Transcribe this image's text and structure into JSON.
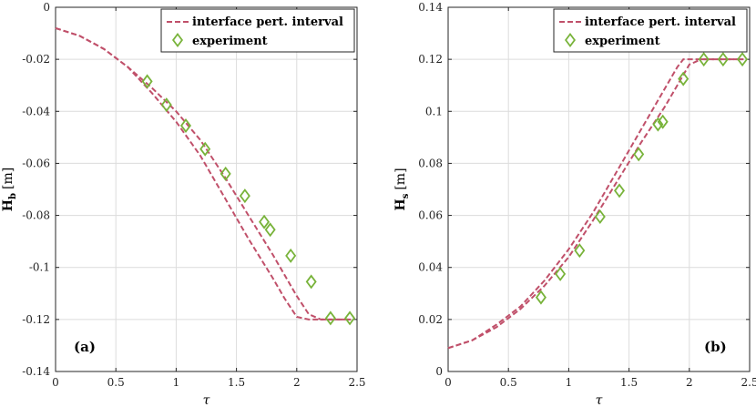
{
  "colors": {
    "interval": "#c0506a",
    "experiment": "#78b33a",
    "grid": "#dcdcdc",
    "axis": "#262626"
  },
  "legend_labels": {
    "interval": "interface pert. interval",
    "experiment": "experiment"
  },
  "chart_data": [
    {
      "type": "line",
      "panel_label": "(a)",
      "xlabel": "τ",
      "ylabel_main": "H",
      "ylabel_sub": "b",
      "ylabel_unit": "[m]",
      "xlim": [
        0,
        2.5
      ],
      "ylim": [
        -0.14,
        0
      ],
      "xticks": [
        0,
        0.5,
        1,
        1.5,
        2,
        2.5
      ],
      "xtick_labels": [
        "0",
        "0.5",
        "1",
        "1.5",
        "2",
        "2.5"
      ],
      "yticks": [
        -0.14,
        -0.12,
        -0.1,
        -0.08,
        -0.06,
        -0.04,
        -0.02,
        0
      ],
      "ytick_labels": [
        "-0.14",
        "-0.12",
        "-0.1",
        "-0.08",
        "-0.06",
        "-0.04",
        "-0.02",
        "0"
      ],
      "grid": true,
      "legend_position": "top-right",
      "series": [
        {
          "name": "interface pert. interval",
          "style": "dashed",
          "x": [
            0,
            0.2,
            0.4,
            0.6,
            0.8,
            1.0,
            1.2,
            1.4,
            1.6,
            1.8,
            1.9,
            2.0,
            2.1,
            2.2,
            2.3,
            2.4,
            2.45
          ],
          "y": [
            -0.008,
            -0.011,
            -0.016,
            -0.023,
            -0.031,
            -0.04,
            -0.051,
            -0.065,
            -0.08,
            -0.095,
            -0.103,
            -0.111,
            -0.118,
            -0.12,
            -0.12,
            -0.12,
            -0.12
          ]
        },
        {
          "name": "interface pert. interval",
          "style": "dashed",
          "x": [
            0,
            0.2,
            0.4,
            0.6,
            0.8,
            1.0,
            1.2,
            1.4,
            1.6,
            1.8,
            1.9,
            2.0,
            2.1,
            2.2,
            2.3,
            2.4,
            2.45
          ],
          "y": [
            -0.008,
            -0.011,
            -0.016,
            -0.023,
            -0.033,
            -0.044,
            -0.057,
            -0.073,
            -0.089,
            -0.104,
            -0.112,
            -0.119,
            -0.12,
            -0.12,
            -0.12,
            -0.12,
            -0.12
          ]
        },
        {
          "name": "experiment",
          "style": "diamond",
          "x": [
            0.76,
            0.92,
            1.08,
            1.24,
            1.41,
            1.57,
            1.73,
            1.78,
            1.95,
            2.12,
            2.28,
            2.44
          ],
          "y": [
            -0.0285,
            -0.0375,
            -0.0455,
            -0.0545,
            -0.064,
            -0.0725,
            -0.0825,
            -0.0855,
            -0.0955,
            -0.1055,
            -0.1195,
            -0.1195
          ]
        }
      ]
    },
    {
      "type": "line",
      "panel_label": "(b)",
      "xlabel": "τ",
      "ylabel_main": "H",
      "ylabel_sub": "s",
      "ylabel_unit": "[m]",
      "xlim": [
        0,
        2.5
      ],
      "ylim": [
        0,
        0.14
      ],
      "xticks": [
        0,
        0.5,
        1,
        1.5,
        2,
        2.5
      ],
      "xtick_labels": [
        "0",
        "0.5",
        "1",
        "1.5",
        "2",
        "2.5"
      ],
      "yticks": [
        0,
        0.02,
        0.04,
        0.06,
        0.08,
        0.1,
        0.12,
        0.14
      ],
      "ytick_labels": [
        "0",
        "0.02",
        "0.04",
        "0.06",
        "0.08",
        "0.1",
        "0.12",
        "0.14"
      ],
      "grid": true,
      "legend_position": "top-right",
      "series": [
        {
          "name": "interface pert. interval",
          "style": "dashed",
          "x": [
            0,
            0.2,
            0.4,
            0.6,
            0.8,
            1.0,
            1.2,
            1.4,
            1.6,
            1.8,
            1.9,
            1.95,
            2.0,
            2.1,
            2.2,
            2.3,
            2.45
          ],
          "y": [
            0.009,
            0.012,
            0.017,
            0.024,
            0.033,
            0.044,
            0.058,
            0.073,
            0.088,
            0.102,
            0.11,
            0.114,
            0.118,
            0.12,
            0.12,
            0.12,
            0.12
          ]
        },
        {
          "name": "interface pert. interval",
          "style": "dashed",
          "x": [
            0,
            0.2,
            0.4,
            0.6,
            0.8,
            1.0,
            1.2,
            1.4,
            1.6,
            1.8,
            1.9,
            1.95,
            2.0,
            2.1,
            2.2,
            2.3,
            2.45
          ],
          "y": [
            0.009,
            0.012,
            0.018,
            0.025,
            0.035,
            0.047,
            0.061,
            0.077,
            0.093,
            0.109,
            0.117,
            0.12,
            0.12,
            0.12,
            0.12,
            0.12,
            0.12
          ]
        },
        {
          "name": "experiment",
          "style": "diamond",
          "x": [
            0.77,
            0.93,
            1.09,
            1.26,
            1.42,
            1.58,
            1.74,
            1.78,
            1.95,
            2.12,
            2.28,
            2.44
          ],
          "y": [
            0.0285,
            0.0375,
            0.0465,
            0.0595,
            0.0695,
            0.0835,
            0.095,
            0.096,
            0.1125,
            0.12,
            0.12,
            0.12
          ]
        }
      ]
    }
  ]
}
